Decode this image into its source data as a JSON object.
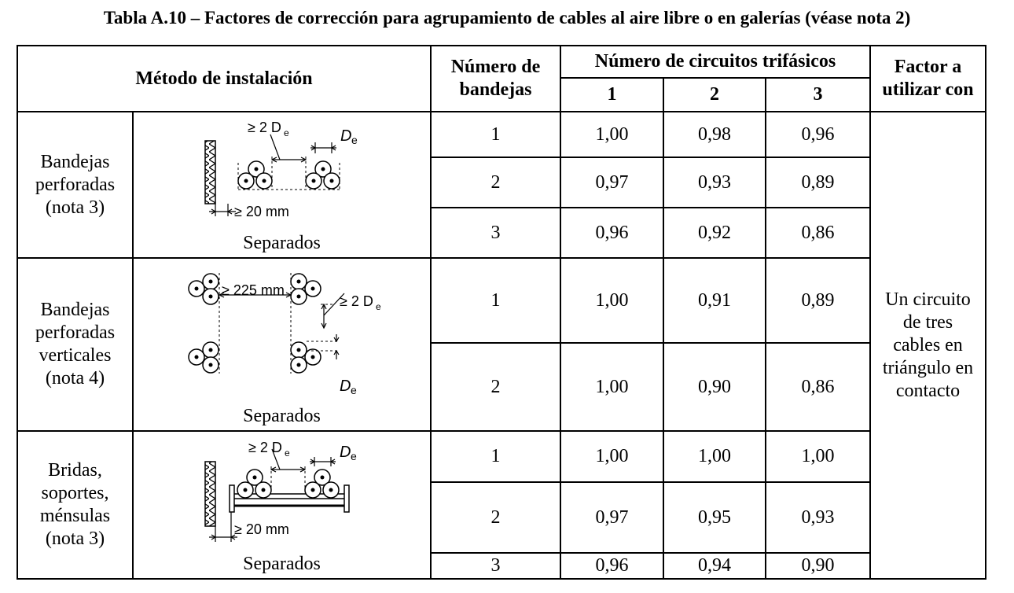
{
  "title": "Tabla A.10 – Factores de corrección para agrupamiento de cables al aire libre o en galerías (véase nota 2)",
  "header": {
    "metodo": "Método de instalación",
    "numero_bandejas": [
      "Número de",
      "bandejas"
    ],
    "circuitos": "Número de circuitos trifásicos",
    "c1": "1",
    "c2": "2",
    "c3": "3",
    "factor": [
      "Factor a",
      "utilizar con"
    ]
  },
  "groups": [
    {
      "label": [
        "Bandejas",
        "perforadas",
        "(nota 3)"
      ],
      "figure_label": "Separados",
      "dim": {
        "spacing": "≥ 2 D",
        "diam": "D",
        "sub": "e",
        "gap": "≥ 20 mm"
      },
      "rows": [
        {
          "n": "1",
          "v": [
            "1,00",
            "0,98",
            "0,96"
          ]
        },
        {
          "n": "2",
          "v": [
            "0,97",
            "0,93",
            "0,89"
          ]
        },
        {
          "n": "3",
          "v": [
            "0,96",
            "0,92",
            "0,86"
          ]
        }
      ]
    },
    {
      "label": [
        "Bandejas",
        "perforadas",
        "verticales",
        "(nota 4)"
      ],
      "figure_label": "Separados",
      "dim": {
        "spacing": "≥ 2 D",
        "diam": "D",
        "sub": "e",
        "gap": "≥ 225 mm"
      },
      "rows": [
        {
          "n": "1",
          "v": [
            "1,00",
            "0,91",
            "0,89"
          ]
        },
        {
          "n": "2",
          "v": [
            "1,00",
            "0,90",
            "0,86"
          ]
        }
      ]
    },
    {
      "label": [
        "Bridas,",
        "soportes,",
        "ménsulas",
        "(nota 3)"
      ],
      "figure_label": "Separados",
      "dim": {
        "spacing": "≥ 2 D",
        "diam": "D",
        "sub": "e",
        "gap": "≥ 20 mm"
      },
      "rows": [
        {
          "n": "1",
          "v": [
            "1,00",
            "1,00",
            "1,00"
          ]
        },
        {
          "n": "2",
          "v": [
            "0,97",
            "0,95",
            "0,93"
          ]
        },
        {
          "n": "3",
          "v": [
            "0,96",
            "0,94",
            "0,90"
          ]
        }
      ]
    }
  ],
  "factor_text": [
    "Un circuito",
    "de tres",
    "cables en",
    "triángulo en",
    "contacto"
  ]
}
